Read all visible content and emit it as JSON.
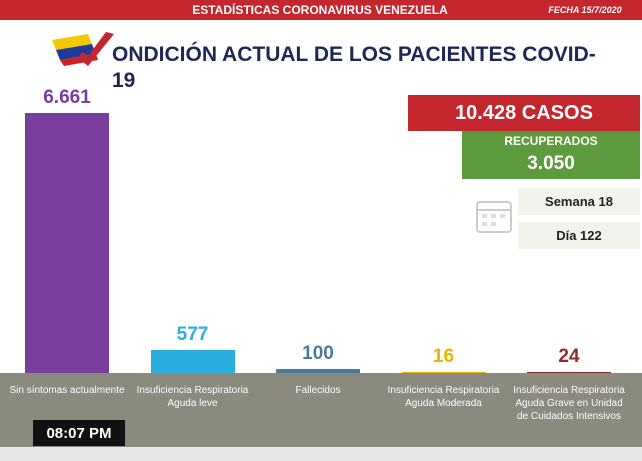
{
  "header": {
    "title": "ESTADÍSTICAS CORONAVIRUS VENEZUELA",
    "date": "FECHA 15/7/2020"
  },
  "chart_data": {
    "type": "bar",
    "title": "ONDICIÓN ACTUAL DE LOS PACIENTES COVID-19",
    "categories": [
      "Sin síntomas actualmente",
      "Insuficiencia Respiratoria Aguda leve",
      "Fallecidos",
      "Insuficiencia Respiratoria Aguda Moderada",
      "Insuficiencia Respiratoria Aguda Grave en Unidad de Cuidados Intensivos"
    ],
    "values": [
      6661,
      577,
      100,
      16,
      24
    ],
    "value_labels": [
      "6.661",
      "577",
      "100",
      "16",
      "24"
    ],
    "colors": [
      "#7a3f9e",
      "#2aaee0",
      "#4d7a9c",
      "#e8b400",
      "#8e2c2c"
    ],
    "ylim": [
      0,
      7000
    ]
  },
  "summary": {
    "cases": "10.428 CASOS",
    "recovered_label": "RECUPERADOS",
    "recovered": "3.050",
    "week": "Semana 18",
    "day": "Día 122"
  },
  "clock": "08:07 PM"
}
